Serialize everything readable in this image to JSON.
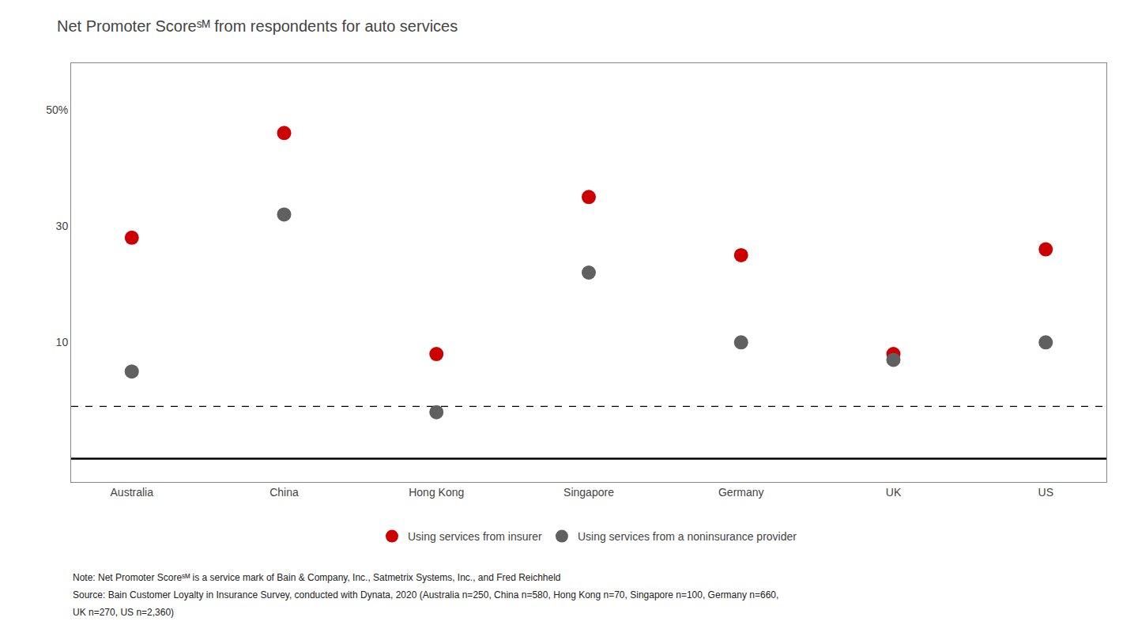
{
  "chart_data": {
    "type": "scatter",
    "marker": "circle",
    "title": "Net Promoter Scoreˢᴹ from respondents for auto services",
    "categories": [
      "Australia",
      "China",
      "Hong Kong",
      "Singapore",
      "Germany",
      "UK",
      "US"
    ],
    "series": [
      {
        "name": "Using services from insurer",
        "color": "#CC0000",
        "values": [
          28,
          46,
          8,
          35,
          25,
          8,
          26
        ]
      },
      {
        "name": "Using services from a noninsurance provider",
        "color": "#606060",
        "values": [
          5,
          32,
          -2,
          22,
          10,
          7,
          10
        ]
      }
    ],
    "reference_lines": [
      {
        "y": -1,
        "line_style": "dashed",
        "color": "black"
      },
      {
        "y": -10,
        "line_style": "solid",
        "color": "black"
      }
    ],
    "ylim": [
      -14,
      58
    ],
    "yticks": [
      10,
      30,
      {
        "value": 50,
        "label": "50%"
      }
    ],
    "grid": false,
    "legend": "bottom",
    "annotations": [
      "Note: Net Promoter Scoreˢᴹ is a service mark of Bain & Company, Inc., Satmetrix Systems, Inc., and Fred Reichheld",
      "Source: Bain Customer Loyalty in Insurance Survey, conducted with Dynata, 2020 (Australia n=250, China n=580, Hong Kong n=70, Singapore n=100, Germany n=660,",
      "UK n=270, US n=2,360)"
    ]
  }
}
